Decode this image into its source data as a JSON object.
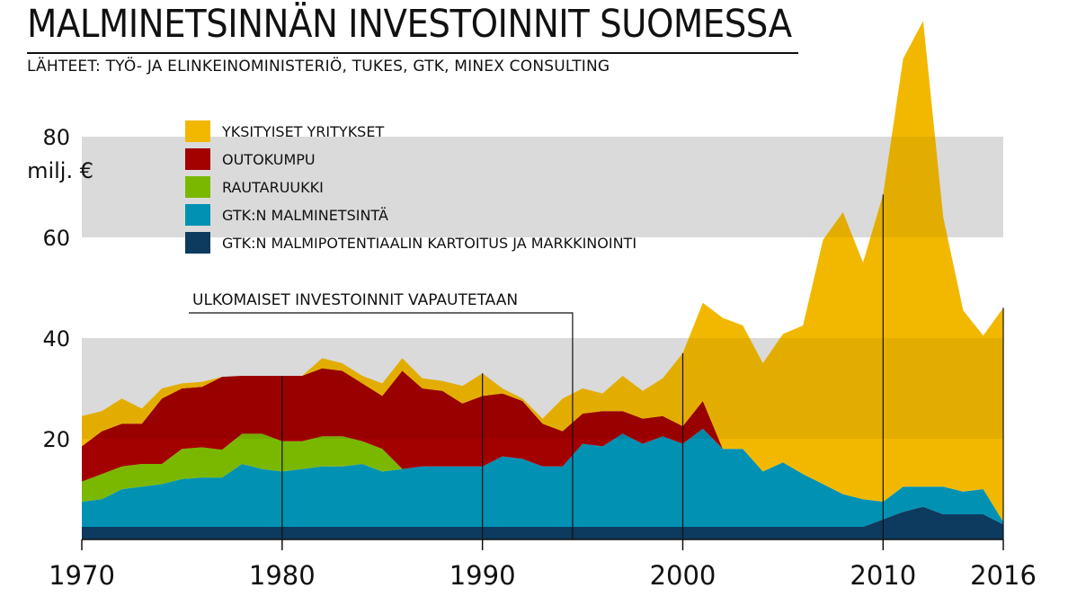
{
  "title": "MALMINETSINNÄN INVESTOINNIT SUOMESSA",
  "subtitle": "LÄHTEET: TYÖ- JA ELINKEINOMINISTERIÖ, TUKES, GTK, MINEX CONSULTING",
  "colors": {
    "yksityiset": "#f2b800",
    "outokumpu": "#a30000",
    "rautaruukki": "#7ab800",
    "gtk_malminetsinta": "#0091b3",
    "gtk_potentiaali": "#0d3a5f",
    "band": "#e8e8e8"
  },
  "chart_data": {
    "type": "area",
    "stacked": true,
    "title": "MALMINETSINNÄN INVESTOINNIT SUOMESSA",
    "ylabel": "milj. €",
    "xlim": [
      1970,
      2016
    ],
    "ylim": [
      0,
      100
    ],
    "yticks": [
      20,
      40,
      60,
      80
    ],
    "xticks": [
      1970,
      1980,
      1990,
      2000,
      2010,
      2016
    ],
    "annotation": "ULKOMAISET INVESTOINNIT VAPAUTETAAN",
    "annotation_year": 1994.5,
    "x": [
      1970,
      1971,
      1972,
      1973,
      1974,
      1975,
      1976,
      1977,
      1978,
      1979,
      1980,
      1981,
      1982,
      1983,
      1984,
      1985,
      1986,
      1987,
      1988,
      1989,
      1990,
      1991,
      1992,
      1993,
      1994,
      1995,
      1996,
      1997,
      1998,
      1999,
      2000,
      2001,
      2002,
      2003,
      2004,
      2005,
      2006,
      2007,
      2008,
      2009,
      2010,
      2011,
      2012,
      2013,
      2014,
      2015,
      2016
    ],
    "series": [
      {
        "key": "gtk_potentiaali",
        "name": "GTK:N MALMIPOTENTIAALIN KARTOITUS JA MARKKINOINTI",
        "values": [
          2.5,
          2.5,
          2.5,
          2.5,
          2.5,
          2.5,
          2.5,
          2.5,
          2.5,
          2.5,
          2.5,
          2.5,
          2.5,
          2.5,
          2.5,
          2.5,
          2.5,
          2.5,
          2.5,
          2.5,
          2.5,
          2.5,
          2.5,
          2.5,
          2.5,
          2.5,
          2.5,
          2.5,
          2.5,
          2.5,
          2.5,
          2.5,
          2.5,
          2.5,
          2.5,
          2.5,
          2.5,
          2.5,
          2.5,
          2.5,
          4,
          5.5,
          6.5,
          5,
          5,
          5,
          3
        ]
      },
      {
        "key": "gtk_malminetsinta",
        "name": "GTK:N MALMINETSINTÄ",
        "values": [
          5,
          5.5,
          7.5,
          8,
          8.5,
          9.5,
          9.8,
          9.8,
          12.5,
          11.5,
          11,
          11.5,
          12,
          12,
          12.5,
          11,
          11.5,
          12,
          12,
          12,
          12,
          14,
          13.5,
          12,
          12,
          16.5,
          16,
          18.5,
          16.5,
          18,
          16.5,
          19.5,
          15.5,
          15.5,
          11,
          12.8,
          10.5,
          8.5,
          6.5,
          5.5,
          3.5,
          5,
          4,
          5.5,
          4.5,
          5,
          0.5
        ]
      },
      {
        "key": "rautaruukki",
        "name": "RAUTARUUKKI",
        "values": [
          4,
          5,
          4.5,
          4.5,
          4,
          6,
          6,
          5.5,
          6,
          7,
          6,
          5.5,
          6,
          6,
          4.5,
          4.5,
          0,
          0,
          0,
          0,
          0,
          0,
          0,
          0,
          0,
          0,
          0,
          0,
          0,
          0,
          0,
          0,
          0,
          0,
          0,
          0,
          0,
          0,
          0,
          0,
          0,
          0,
          0,
          0,
          0,
          0,
          0
        ]
      },
      {
        "key": "outokumpu",
        "name": "OUTOKUMPU",
        "values": [
          7,
          8.5,
          8.5,
          8,
          13,
          12,
          12,
          14.5,
          11.5,
          11.5,
          13,
          13,
          13.5,
          13,
          11.5,
          10.5,
          19.5,
          15.5,
          15,
          12.5,
          14,
          12.5,
          11.5,
          8.5,
          7,
          6,
          7,
          4.5,
          5,
          4,
          3.5,
          5.5,
          0,
          0,
          0,
          0,
          0,
          0,
          0,
          0,
          0,
          0,
          0,
          0,
          0,
          0,
          0
        ]
      },
      {
        "key": "yksityiset",
        "name": "YKSITYISET YRITYKSET",
        "values": [
          6,
          4,
          5,
          3,
          2,
          1,
          1,
          0,
          0,
          0,
          0,
          0,
          2,
          1.5,
          1.5,
          2.5,
          2.5,
          2,
          2,
          3.5,
          4.5,
          1,
          0.5,
          1,
          6.5,
          5,
          3.5,
          7,
          5.5,
          7.5,
          14.5,
          19.5,
          26,
          24.5,
          21.5,
          25.5,
          29.5,
          48.5,
          56,
          47,
          61,
          85,
          92.5,
          53.5,
          36,
          30.5,
          42.5
        ]
      }
    ],
    "legend": [
      "YKSITYISET YRITYKSET",
      "OUTOKUMPU",
      "RAUTARUUKKI",
      "GTK:N MALMINETSINTÄ",
      "GTK:N MALMIPOTENTIAALIN KARTOITUS JA MARKKINOINTI"
    ],
    "legend_position": "top-left"
  }
}
